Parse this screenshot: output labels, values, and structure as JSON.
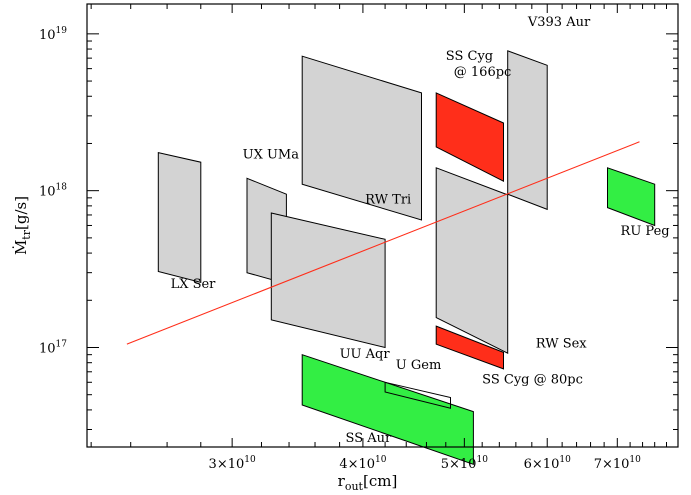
{
  "chart_data": {
    "type": "scatter",
    "title": "",
    "xlabel": "r",
    "xlabel_sub": "out",
    "xlabel_unit": "[cm]",
    "ylabel": "Ṁ",
    "ylabel_sub": "tr",
    "ylabel_unit": "[g/s]",
    "x_scale": "log",
    "y_scale": "log",
    "xlim": [
      21800000000.0,
      80000000000.0
    ],
    "ylim": [
      2.32e+16,
      1.55e+19
    ],
    "x_ticks": [
      {
        "value": 30000000000.0,
        "label": "3×10",
        "exp": "10"
      },
      {
        "value": 40000000000.0,
        "label": "4×10",
        "exp": "10"
      },
      {
        "value": 50000000000.0,
        "label": "5×10",
        "exp": "10"
      },
      {
        "value": 60000000000.0,
        "label": "6×10",
        "exp": "10"
      },
      {
        "value": 70000000000.0,
        "label": "7×10",
        "exp": "10"
      }
    ],
    "y_ticks": [
      {
        "value": 1e+17,
        "label": "10",
        "exp": "17"
      },
      {
        "value": 1e+18,
        "label": "10",
        "exp": "18"
      },
      {
        "value": 1e+19,
        "label": "10",
        "exp": "19"
      }
    ],
    "colors": {
      "gray": "#d3d3d3",
      "red": "#ff2e1a",
      "green": "#33ee44",
      "line": "#ff2e1a"
    },
    "regions": [
      {
        "label": "LX Ser",
        "color": "gray",
        "polygon": [
          [
            25500000000.0,
            1.75e+18
          ],
          [
            28000000000.0,
            1.52e+18
          ],
          [
            28000000000.0,
            2.6e+17
          ],
          [
            25500000000.0,
            3.05e+17
          ]
        ],
        "label_pos": [
          26200000000.0,
          2.4e+17
        ]
      },
      {
        "label": "UX UMa",
        "color": "gray",
        "polygon": [
          [
            31000000000.0,
            1.2e+18
          ],
          [
            33800000000.0,
            9.5e+17
          ],
          [
            33800000000.0,
            2.55e+17
          ],
          [
            31000000000.0,
            3e+17
          ]
        ],
        "label_pos": [
          30700000000.0,
          1.6e+18
        ]
      },
      {
        "label": "RW Tri",
        "color": "gray",
        "polygon": [
          [
            35000000000.0,
            7.2e+18
          ],
          [
            45500000000.0,
            4.2e+18
          ],
          [
            45500000000.0,
            6.5e+17
          ],
          [
            35000000000.0,
            1.1e+18
          ]
        ],
        "label_pos": [
          40200000000.0,
          8.3e+17
        ]
      },
      {
        "label": "UU Aqr",
        "color": "gray",
        "polygon": [
          [
            32700000000.0,
            7.2e+17
          ],
          [
            42000000000.0,
            4.9e+17
          ],
          [
            42000000000.0,
            1e+17
          ],
          [
            32700000000.0,
            1.5e+17
          ]
        ],
        "label_pos": [
          38000000000.0,
          8.6e+16
        ]
      },
      {
        "label": "V393 Aur",
        "color": "gray",
        "polygon": [
          [
            55000000000.0,
            7.8e+18
          ],
          [
            60000000000.0,
            6.3e+18
          ],
          [
            60000000000.0,
            7.6e+17
          ],
          [
            55000000000.0,
            9.5e+17
          ]
        ],
        "label_pos": [
          57500000000.0,
          1.12e+19
        ]
      },
      {
        "label": "RW Sex",
        "color": "gray",
        "polygon": [
          [
            47000000000.0,
            1.4e+18
          ],
          [
            55000000000.0,
            9.4e+17
          ],
          [
            55000000000.0,
            9.2e+16
          ],
          [
            47000000000.0,
            1.55e+17
          ]
        ],
        "label_pos": [
          58500000000.0,
          1e+17
        ]
      },
      {
        "label": "SS Cyg @ 166pc",
        "color": "red",
        "polygon": [
          [
            47000000000.0,
            4.2e+18
          ],
          [
            54500000000.0,
            2.7e+18
          ],
          [
            54500000000.0,
            1.15e+18
          ],
          [
            47000000000.0,
            1.9e+18
          ]
        ],
        "label_pos": [
          48000000000.0,
          6.8e+18
        ],
        "label_lines": [
          "SS Cyg",
          "@ 166pc"
        ]
      },
      {
        "label": "SS Cyg @ 80pc",
        "color": "red",
        "polygon": [
          [
            47000000000.0,
            1.37e+17
          ],
          [
            54500000000.0,
            9.3e+16
          ],
          [
            54500000000.0,
            7.3e+16
          ],
          [
            47000000000.0,
            1.05e+17
          ]
        ],
        "label_pos": [
          52000000000.0,
          5.9e+16
        ]
      },
      {
        "label": "RU Peg",
        "color": "green",
        "polygon": [
          [
            68500000000.0,
            1.4e+18
          ],
          [
            76000000000.0,
            1.1e+18
          ],
          [
            76000000000.0,
            6e+17
          ],
          [
            68500000000.0,
            7.8e+17
          ]
        ],
        "label_pos": [
          70500000000.0,
          5.2e+17
        ]
      },
      {
        "label": "SS Aur",
        "color": "green",
        "polygon": [
          [
            35000000000.0,
            9e+16
          ],
          [
            51000000000.0,
            3.9e+16
          ],
          [
            51000000000.0,
            1.8e+16
          ],
          [
            35000000000.0,
            4.3e+16
          ]
        ],
        "label_pos": [
          38500000000.0,
          2.5e+16
        ]
      },
      {
        "label": "U Gem",
        "color": "outline",
        "polygon": [
          [
            42000000000.0,
            6e+16
          ],
          [
            48500000000.0,
            4.8e+16
          ],
          [
            48500000000.0,
            4.1e+16
          ],
          [
            42000000000.0,
            5.2e+16
          ]
        ],
        "label_pos": [
          43000000000.0,
          7.3e+16
        ]
      }
    ],
    "line": {
      "x": [
        23800000000.0,
        73500000000.0
      ],
      "y": [
        1.05e+17,
        2.05e+18
      ]
    }
  }
}
